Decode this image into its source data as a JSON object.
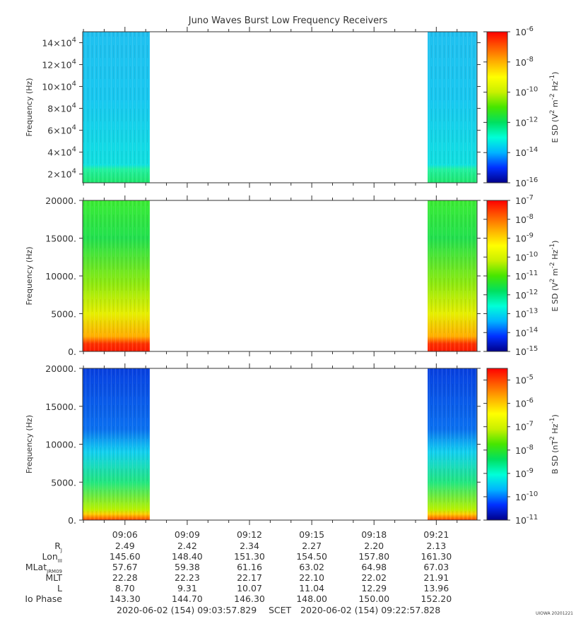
{
  "title": "Juno Waves Burst Low Frequency Receivers",
  "credit": "UIOWA 20201221",
  "footer": {
    "start": "2020-06-02 (154) 09:03:57.829",
    "label": "SCET",
    "end": "2020-06-02 (154) 09:22:57.828"
  },
  "chart_data": [
    {
      "type": "heatmap",
      "ylabel": "Frequency (Hz)",
      "yticks": [
        "2×10^4",
        "4×10^4",
        "6×10^4",
        "8×10^4",
        "10×10^4",
        "12×10^4",
        "14×10^4"
      ],
      "ytick_values": [
        20000,
        40000,
        60000,
        80000,
        100000,
        120000,
        140000
      ],
      "ylim": [
        12000,
        150000
      ],
      "colorbar": {
        "label": "E SD (V^2 m^-2 Hz^-1)",
        "scale": "log",
        "range": [
          -16,
          -6
        ],
        "ticks": [
          "10^-6",
          "10^-8",
          "10^-10",
          "10^-12",
          "10^-14",
          "10^-16"
        ],
        "tick_values": [
          -6,
          -8,
          -10,
          -12,
          -14,
          -16
        ]
      },
      "data_blocks": [
        {
          "start": "09:03:57",
          "end": "09:07:12",
          "typical_log_level": -13.2
        },
        {
          "start": "09:20:35",
          "end": "09:22:57",
          "typical_log_level": -13.0
        }
      ]
    },
    {
      "type": "heatmap",
      "ylabel": "Frequency (Hz)",
      "yticks": [
        "0.",
        "5000.",
        "10000.",
        "15000.",
        "20000."
      ],
      "ytick_values": [
        0,
        5000,
        10000,
        15000,
        20000
      ],
      "ylim": [
        0,
        20000
      ],
      "colorbar": {
        "label": "E SD (V^2 m^-2 Hz^-1)",
        "scale": "log",
        "range": [
          -15,
          -7
        ],
        "ticks": [
          "10^-7",
          "10^-8",
          "10^-9",
          "10^-10",
          "10^-11",
          "10^-12",
          "10^-13",
          "10^-14",
          "10^-15"
        ],
        "tick_values": [
          -7,
          -8,
          -9,
          -10,
          -11,
          -12,
          -13,
          -14,
          -15
        ]
      },
      "data_blocks": [
        {
          "start": "09:03:57",
          "end": "09:07:12",
          "typical_log_level": -11.0
        },
        {
          "start": "09:20:35",
          "end": "09:22:57",
          "typical_log_level": -11.2
        }
      ]
    },
    {
      "type": "heatmap",
      "ylabel": "Frequency (Hz)",
      "yticks": [
        "0.",
        "5000.",
        "10000.",
        "15000.",
        "20000."
      ],
      "ytick_values": [
        0,
        5000,
        10000,
        15000,
        20000
      ],
      "ylim": [
        0,
        20000
      ],
      "colorbar": {
        "label": "B SD (nT^2 Hz^-1)",
        "scale": "log",
        "range": [
          -11,
          -4.5
        ],
        "ticks": [
          "10^-5",
          "10^-6",
          "10^-7",
          "10^-8",
          "10^-9",
          "10^-10",
          "10^-11"
        ],
        "tick_values": [
          -5,
          -6,
          -7,
          -8,
          -9,
          -10,
          -11
        ]
      },
      "data_blocks": [
        {
          "start": "09:03:57",
          "end": "09:07:12",
          "typical_log_level": -9.5
        },
        {
          "start": "09:20:35",
          "end": "09:22:57",
          "typical_log_level": -9.2
        }
      ]
    }
  ],
  "time_axis": {
    "range": [
      "09:03:57.829",
      "09:22:57.828"
    ],
    "major_ticks": [
      "09:06",
      "09:09",
      "09:12",
      "09:15",
      "09:18",
      "09:21"
    ]
  },
  "ephemeris": {
    "rows": [
      {
        "label": "R",
        "sub": "J",
        "values": [
          "2.49",
          "2.42",
          "2.34",
          "2.27",
          "2.20",
          "2.13"
        ]
      },
      {
        "label": "Lon",
        "sub": "III",
        "values": [
          "145.60",
          "148.40",
          "151.30",
          "154.50",
          "157.80",
          "161.30"
        ]
      },
      {
        "label": "MLat",
        "sub": "JRM09",
        "values": [
          "57.67",
          "59.38",
          "61.16",
          "63.02",
          "64.98",
          "67.03"
        ]
      },
      {
        "label": "MLT",
        "sub": "",
        "values": [
          "22.28",
          "22.23",
          "22.17",
          "22.10",
          "22.02",
          "21.91"
        ]
      },
      {
        "label": "L",
        "sub": "",
        "values": [
          "8.70",
          "9.31",
          "10.07",
          "11.04",
          "12.29",
          "13.96"
        ]
      },
      {
        "label": "Io Phase",
        "sub": "",
        "values": [
          "143.30",
          "144.70",
          "146.30",
          "148.00",
          "150.00",
          "152.20"
        ]
      }
    ]
  },
  "colormap": [
    "#00008a",
    "#0030ff",
    "#00b4ff",
    "#00ffd8",
    "#00e060",
    "#46e600",
    "#c8f000",
    "#ffff00",
    "#ffb000",
    "#ff5a00",
    "#ff0000"
  ]
}
